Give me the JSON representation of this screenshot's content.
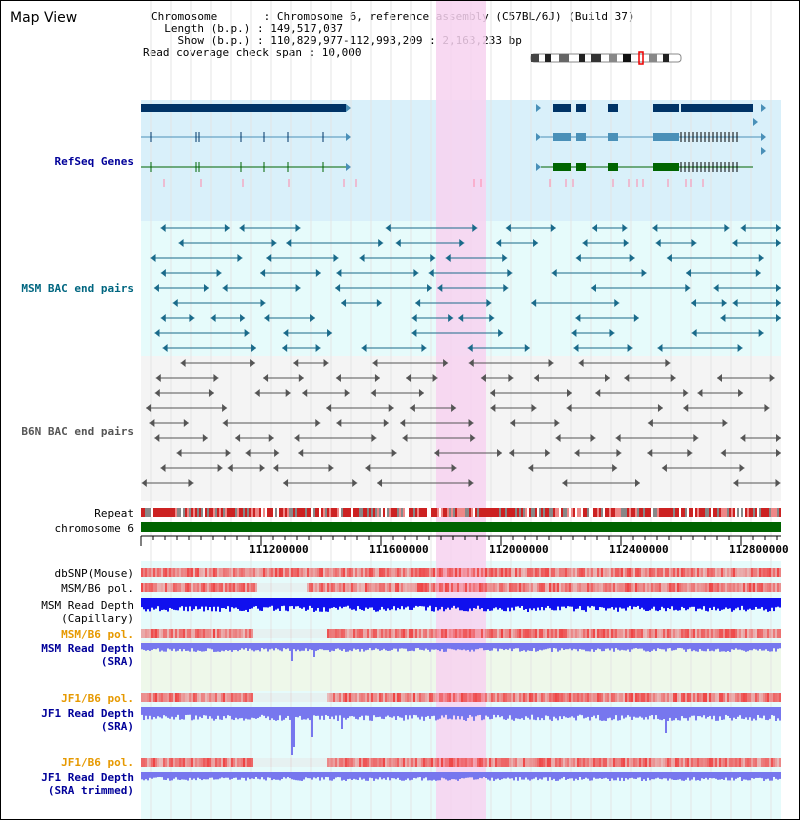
{
  "view_title": "Map View",
  "info": {
    "chromosome": "Chromosome       : Chromosome 6, reference assembly (C57BL/6J) (Build 37)",
    "length": "  Length (b.p.) : 149,517,037",
    "show": "    Show (b.p.) : 110,829,977-112,993,209 : 2,163,233 bp",
    "coverage": "Read coverage check span : 10,000"
  },
  "tracks": {
    "refseq": "RefSeq Genes",
    "msm_bac": "MSM BAC end pairs",
    "b6n_bac": "B6N BAC end pairs",
    "repeat": "Repeat",
    "chromosome": "chromosome 6",
    "dbsnp": "dbSNP(Mouse)",
    "msm_b6_pol_1": "MSM/B6 pol.",
    "msm_depth_cap_1": "MSM Read Depth",
    "msm_depth_cap_2": "(Capillary)",
    "msm_b6_pol_2": "MSM/B6 pol.",
    "msm_depth_sra_1": "MSM Read Depth",
    "msm_depth_sra_2": "(SRA)",
    "jf1_b6_pol_1": "JF1/B6 pol.",
    "jf1_depth_sra_1": "JF1 Read Depth",
    "jf1_depth_sra_2": "(SRA)",
    "jf1_b6_pol_2": "JF1/B6 pol.",
    "jf1_depth_trim_1": "JF1 Read Depth",
    "jf1_depth_trim_2": "(SRA trimmed)"
  },
  "axis_ticks": [
    "111200000",
    "111600000",
    "112000000",
    "112400000",
    "112800000"
  ],
  "colors": {
    "refseq_bg": "#d9f0fa",
    "msm_bac_bg": "#e6fbfb",
    "highlight": "#f7d2f0",
    "msm_bac_line": "#1a6a8a",
    "b6n_line": "#555555",
    "chromosome_bar": "#006400",
    "gene_dark": "#003366",
    "gene_mid": "#4a90b8",
    "gene_green": "#006400",
    "depth_blue": "#1010ee",
    "depth_light": "#7777ee",
    "pol_red": "#ee4444",
    "label_blue": "#000099",
    "label_teal": "#006680",
    "label_orange": "#e69900"
  }
}
